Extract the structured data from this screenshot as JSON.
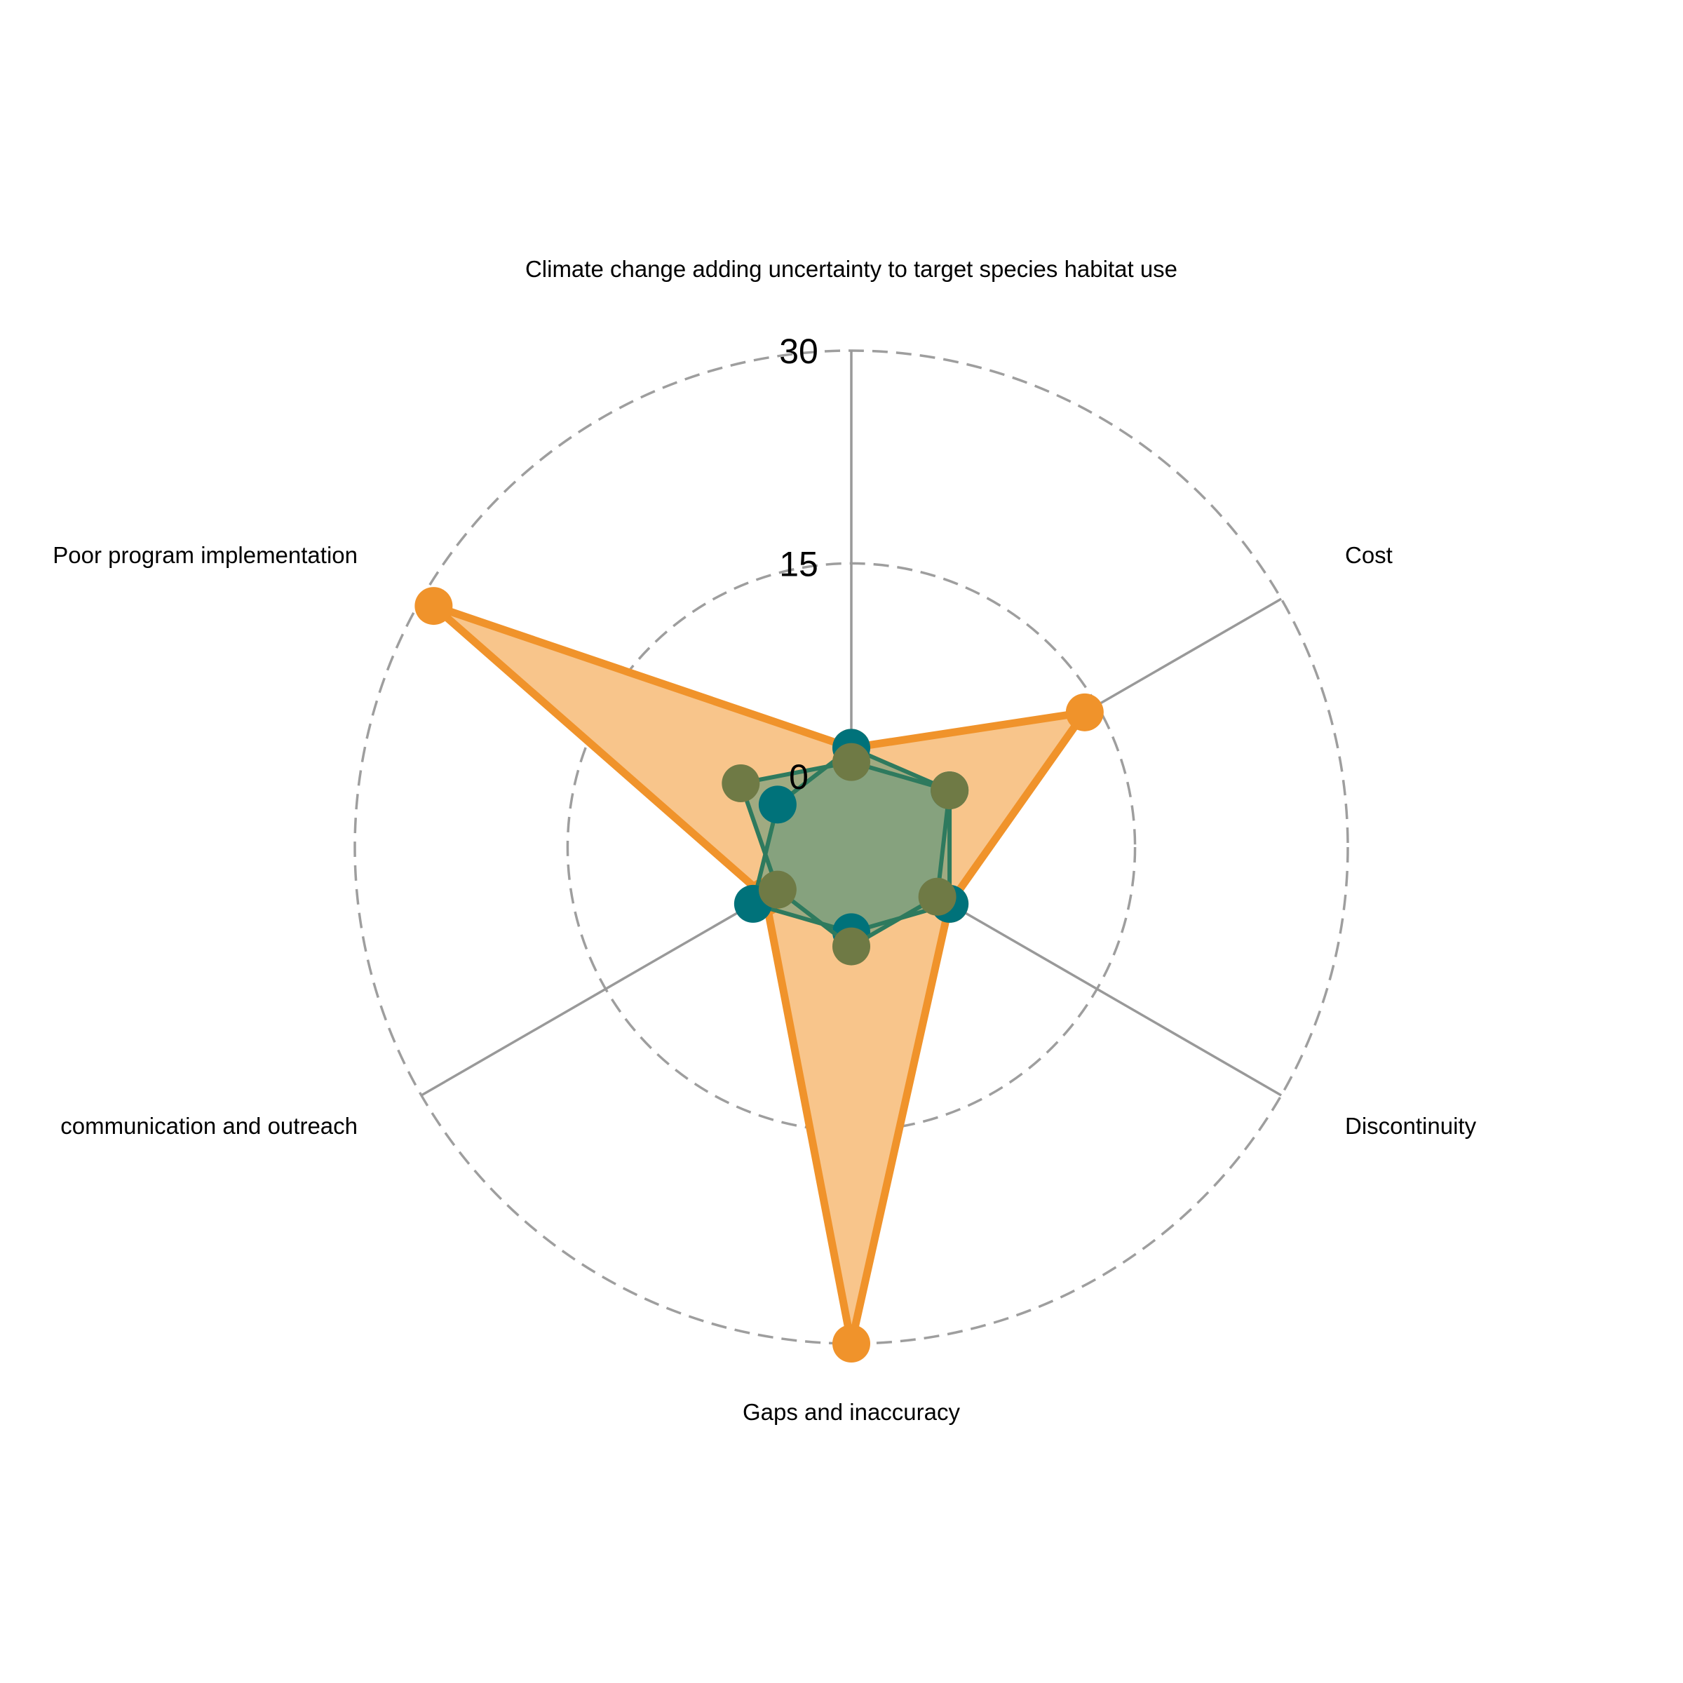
{
  "chart_data": {
    "type": "radar",
    "axes": [
      "Climate change adding uncertainty to target species habitat use",
      "Cost",
      "Discontinuity",
      "Gaps and inaccuracy",
      "communication and outreach",
      "Poor program implementation"
    ],
    "rlim": [
      -5,
      30
    ],
    "ticks": [
      "0",
      "15",
      "30"
    ],
    "tick_values": [
      0,
      15,
      30
    ],
    "grid": "dashed circles",
    "series": [
      {
        "color": "#F0932B",
        "fill": "#F8C58B",
        "values": [
          2,
          14,
          3,
          30,
          2,
          29
        ]
      },
      {
        "color": "#2E7A5E",
        "fill": "#7B9E7E",
        "marker_color": "#00727A",
        "values": [
          2,
          3,
          3,
          1,
          3,
          1
        ]
      },
      {
        "color": "#2E7A5E",
        "fill": "#7B9E7E",
        "marker_color": "#6F7A45",
        "values": [
          1,
          3,
          2,
          2,
          1,
          4
        ]
      }
    ]
  }
}
